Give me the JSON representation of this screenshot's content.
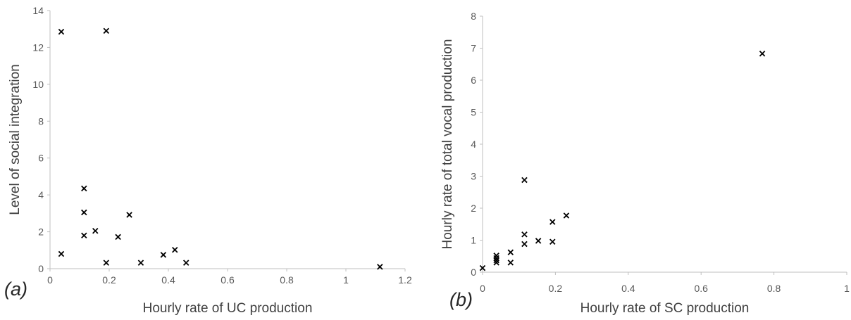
{
  "chart_data": [
    {
      "type": "scatter",
      "panel_label": "(a)",
      "title": "",
      "xlabel": "Hourly rate of UC production",
      "ylabel": "Level of social integration",
      "xlim": [
        0,
        1.2
      ],
      "ylim": [
        0,
        14
      ],
      "x_ticks": [
        "0",
        "0.2",
        "0.4",
        "0.6",
        "0.8",
        "1",
        "1.2"
      ],
      "y_ticks": [
        "0",
        "2",
        "4",
        "6",
        "8",
        "10",
        "12",
        "14"
      ],
      "grid": false,
      "legend": "none",
      "marker": "x",
      "marker_color": "#000000",
      "series": [
        {
          "points": [
            {
              "x": 0.038,
              "y": 12.85
            },
            {
              "x": 0.19,
              "y": 12.9
            },
            {
              "x": 0.038,
              "y": 0.8
            },
            {
              "x": 0.115,
              "y": 4.35
            },
            {
              "x": 0.115,
              "y": 3.05
            },
            {
              "x": 0.115,
              "y": 1.8
            },
            {
              "x": 0.153,
              "y": 2.05
            },
            {
              "x": 0.19,
              "y": 0.32
            },
            {
              "x": 0.23,
              "y": 1.72
            },
            {
              "x": 0.268,
              "y": 2.92
            },
            {
              "x": 0.307,
              "y": 0.32
            },
            {
              "x": 0.383,
              "y": 0.75
            },
            {
              "x": 0.422,
              "y": 1.02
            },
            {
              "x": 0.46,
              "y": 0.32
            },
            {
              "x": 1.115,
              "y": 0.1
            }
          ]
        }
      ]
    },
    {
      "type": "scatter",
      "panel_label": "(b)",
      "title": "",
      "xlabel": "Hourly rate of SC production",
      "ylabel": "Hourly rate of total vocal production",
      "xlim": [
        0,
        1
      ],
      "ylim": [
        0,
        8
      ],
      "x_ticks": [
        "0",
        "0.2",
        "0.4",
        "0.6",
        "0.8",
        "1"
      ],
      "y_ticks": [
        "0",
        "1",
        "2",
        "3",
        "4",
        "5",
        "6",
        "7",
        "8"
      ],
      "grid": false,
      "legend": "none",
      "marker": "x",
      "marker_color": "#000000",
      "series": [
        {
          "points": [
            {
              "x": 0.0,
              "y": 0.13
            },
            {
              "x": 0.038,
              "y": 0.52
            },
            {
              "x": 0.038,
              "y": 0.44
            },
            {
              "x": 0.038,
              "y": 0.37
            },
            {
              "x": 0.038,
              "y": 0.3
            },
            {
              "x": 0.077,
              "y": 0.62
            },
            {
              "x": 0.077,
              "y": 0.3
            },
            {
              "x": 0.115,
              "y": 2.88
            },
            {
              "x": 0.115,
              "y": 1.18
            },
            {
              "x": 0.115,
              "y": 0.88
            },
            {
              "x": 0.153,
              "y": 0.98
            },
            {
              "x": 0.192,
              "y": 1.57
            },
            {
              "x": 0.192,
              "y": 0.95
            },
            {
              "x": 0.23,
              "y": 1.77
            },
            {
              "x": 0.768,
              "y": 6.83
            }
          ]
        }
      ]
    }
  ]
}
